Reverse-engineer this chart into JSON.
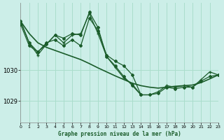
{
  "title": "Graphe pression niveau de la mer (hPa)",
  "bg_color": "#cceee8",
  "grid_color": "#aaddcc",
  "line_color": "#1a5c2a",
  "xlim": [
    0,
    23
  ],
  "ylim": [
    1028.3,
    1032.2
  ],
  "yticks": [
    1029,
    1030
  ],
  "xticks": [
    0,
    1,
    2,
    3,
    4,
    5,
    6,
    7,
    8,
    9,
    10,
    11,
    12,
    13,
    14,
    15,
    16,
    17,
    18,
    19,
    20,
    21,
    22,
    23
  ],
  "series": [
    {
      "x": [
        0,
        1,
        2,
        3,
        4,
        5,
        6,
        7,
        8,
        9,
        10,
        11,
        12,
        13,
        14,
        15,
        16,
        17,
        18,
        19,
        20,
        21,
        22,
        23
      ],
      "y": [
        1031.5,
        1030.8,
        1030.6,
        1030.9,
        1031.0,
        1030.8,
        1031.0,
        1030.8,
        1031.7,
        1031.3,
        1030.5,
        1030.3,
        1030.15,
        1029.85,
        1029.2,
        1029.2,
        1029.25,
        1029.45,
        1029.4,
        1029.45,
        1029.45,
        1029.65,
        1029.8,
        1029.85
      ],
      "marker": "D",
      "markersize": 2.0,
      "lw": 0.9
    },
    {
      "x": [
        0,
        1,
        2,
        3,
        4,
        5,
        6,
        7,
        8,
        9,
        10,
        11,
        12,
        13,
        14,
        15,
        16,
        17,
        18,
        19,
        20,
        21,
        22,
        23
      ],
      "y": [
        1031.6,
        1030.9,
        1030.5,
        1030.85,
        1031.15,
        1030.9,
        1031.15,
        1031.2,
        1031.85,
        1031.2,
        1030.45,
        1030.1,
        1029.75,
        1029.55,
        1029.2,
        1029.2,
        1029.3,
        1029.5,
        1029.45,
        1029.5,
        1029.45,
        1029.7,
        1029.95,
        1029.85
      ],
      "marker": "+",
      "markersize": 3.5,
      "lw": 0.9
    },
    {
      "x": [
        0,
        1,
        2,
        3,
        4,
        5,
        6,
        7,
        8,
        9,
        10,
        11,
        12,
        13,
        14
      ],
      "y": [
        1031.6,
        1030.9,
        1030.6,
        1030.85,
        1031.15,
        1031.05,
        1031.2,
        1031.15,
        1031.9,
        1031.4,
        1030.45,
        1030.15,
        1029.8,
        1029.5,
        1029.2
      ],
      "marker": "D",
      "markersize": 2.0,
      "lw": 0.9
    },
    {
      "x": [
        0,
        1,
        2,
        3,
        4,
        5,
        6,
        7,
        8,
        9,
        10,
        11,
        12,
        13,
        14,
        15,
        16,
        17,
        18,
        19,
        20,
        21,
        22,
        23
      ],
      "y": [
        1031.6,
        1031.2,
        1030.9,
        1030.75,
        1030.65,
        1030.55,
        1030.45,
        1030.35,
        1030.22,
        1030.08,
        1029.95,
        1029.82,
        1029.7,
        1029.58,
        1029.5,
        1029.45,
        1029.42,
        1029.45,
        1029.48,
        1029.5,
        1029.52,
        1029.6,
        1029.72,
        1029.85
      ],
      "marker": null,
      "markersize": 0,
      "lw": 1.2
    }
  ]
}
